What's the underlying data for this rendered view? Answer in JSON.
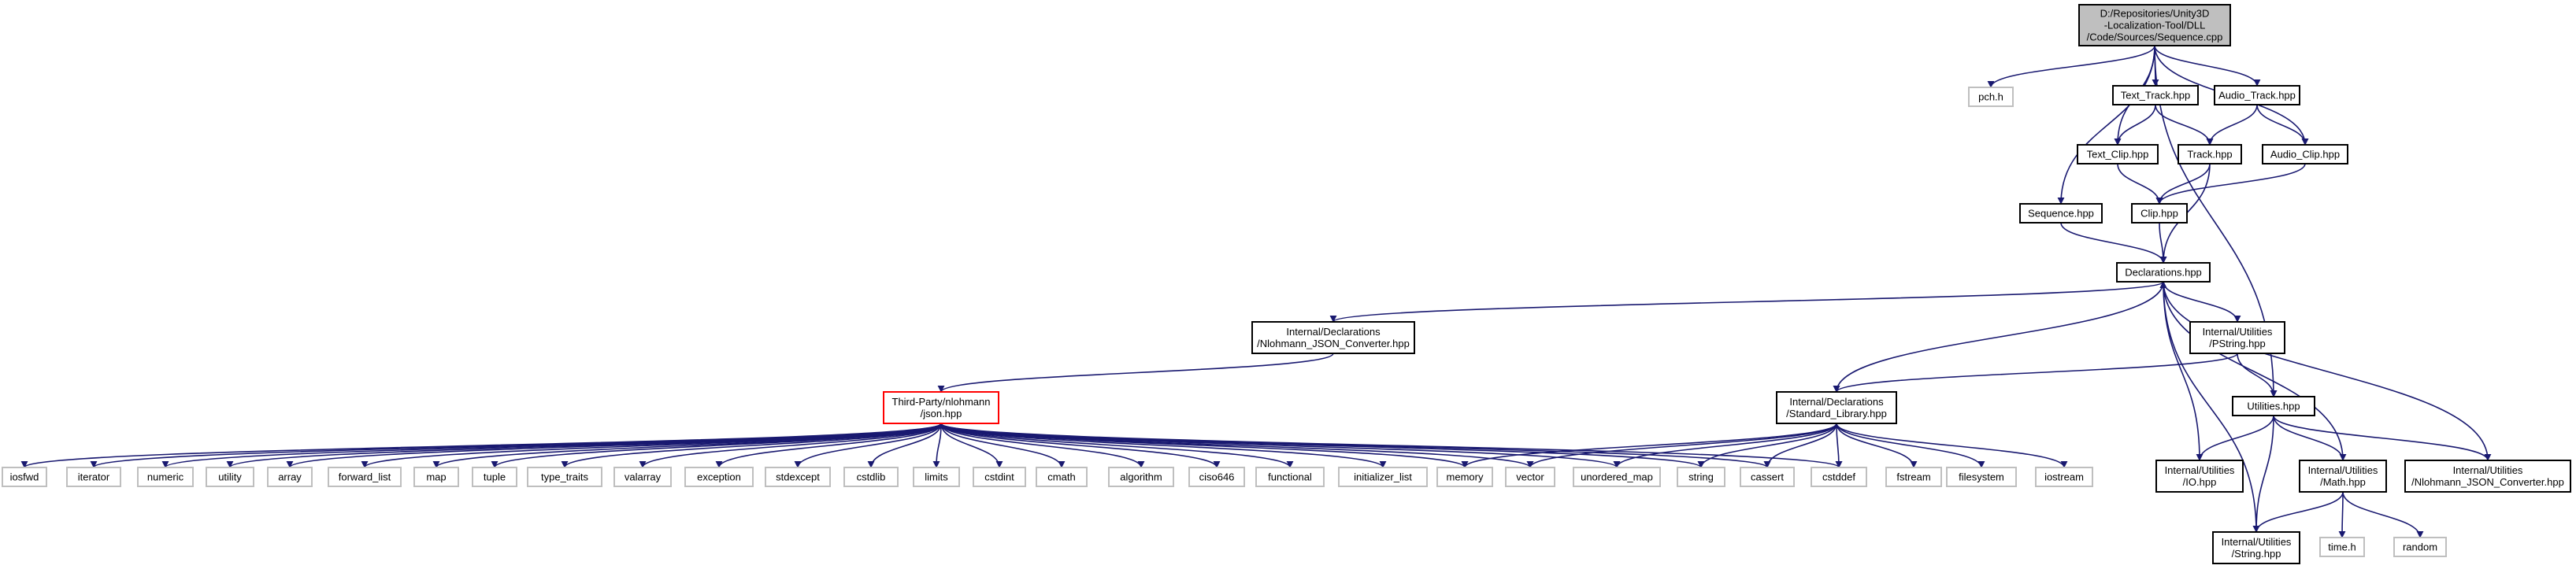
{
  "colors": {
    "root_fill": "#bfbfbf",
    "root_stroke": "#000000",
    "node_fill": "#ffffff",
    "node_stroke": "#000000",
    "system_stroke": "#bfbfbf",
    "truncated_stroke": "#ff0000",
    "edge": "#191970"
  },
  "nodes": [
    {
      "id": "root",
      "kind": "root",
      "lines": [
        "D:/Repositories/Unity3D",
        "-Localization-Tool/DLL",
        "/Code/Sources/Sequence.cpp"
      ]
    },
    {
      "id": "pch",
      "kind": "system",
      "lines": [
        "pch.h"
      ]
    },
    {
      "id": "text_track",
      "kind": "normal",
      "lines": [
        "Text_Track.hpp"
      ]
    },
    {
      "id": "audio_track",
      "kind": "normal",
      "lines": [
        "Audio_Track.hpp"
      ]
    },
    {
      "id": "text_clip",
      "kind": "normal",
      "lines": [
        "Text_Clip.hpp"
      ]
    },
    {
      "id": "track",
      "kind": "normal",
      "lines": [
        "Track.hpp"
      ]
    },
    {
      "id": "audio_clip",
      "kind": "normal",
      "lines": [
        "Audio_Clip.hpp"
      ]
    },
    {
      "id": "sequence",
      "kind": "normal",
      "lines": [
        "Sequence.hpp"
      ]
    },
    {
      "id": "clip",
      "kind": "normal",
      "lines": [
        "Clip.hpp"
      ]
    },
    {
      "id": "declarations",
      "kind": "normal",
      "lines": [
        "Declarations.hpp"
      ]
    },
    {
      "id": "nlohmann_conv_decl",
      "kind": "normal",
      "lines": [
        "Internal/Declarations",
        "/Nlohmann_JSON_Converter.hpp"
      ]
    },
    {
      "id": "pstring",
      "kind": "normal",
      "lines": [
        "Internal/Utilities",
        "/PString.hpp"
      ]
    },
    {
      "id": "json",
      "kind": "truncated",
      "lines": [
        "Third-Party/nlohmann",
        "/json.hpp"
      ]
    },
    {
      "id": "stdlib_hpp",
      "kind": "normal",
      "lines": [
        "Internal/Declarations",
        "/Standard_Library.hpp"
      ]
    },
    {
      "id": "utilities",
      "kind": "normal",
      "lines": [
        "Utilities.hpp"
      ]
    },
    {
      "id": "io",
      "kind": "normal",
      "lines": [
        "Internal/Utilities",
        "/IO.hpp"
      ]
    },
    {
      "id": "math",
      "kind": "normal",
      "lines": [
        "Internal/Utilities",
        "/Math.hpp"
      ]
    },
    {
      "id": "nlohmann_conv_util",
      "kind": "normal",
      "lines": [
        "Internal/Utilities",
        "/Nlohmann_JSON_Converter.hpp"
      ]
    },
    {
      "id": "string_hpp",
      "kind": "normal",
      "lines": [
        "Internal/Utilities",
        "/String.hpp"
      ]
    },
    {
      "id": "time_h",
      "kind": "system",
      "lines": [
        "time.h"
      ]
    },
    {
      "id": "random",
      "kind": "system",
      "lines": [
        "random"
      ]
    },
    {
      "id": "iosfwd",
      "kind": "system",
      "lines": [
        "iosfwd"
      ]
    },
    {
      "id": "iterator",
      "kind": "system",
      "lines": [
        "iterator"
      ]
    },
    {
      "id": "numeric",
      "kind": "system",
      "lines": [
        "numeric"
      ]
    },
    {
      "id": "utility",
      "kind": "system",
      "lines": [
        "utility"
      ]
    },
    {
      "id": "array",
      "kind": "system",
      "lines": [
        "array"
      ]
    },
    {
      "id": "forward_list",
      "kind": "system",
      "lines": [
        "forward_list"
      ]
    },
    {
      "id": "map",
      "kind": "system",
      "lines": [
        "map"
      ]
    },
    {
      "id": "tuple",
      "kind": "system",
      "lines": [
        "tuple"
      ]
    },
    {
      "id": "type_traits",
      "kind": "system",
      "lines": [
        "type_traits"
      ]
    },
    {
      "id": "valarray",
      "kind": "system",
      "lines": [
        "valarray"
      ]
    },
    {
      "id": "exception",
      "kind": "system",
      "lines": [
        "exception"
      ]
    },
    {
      "id": "stdexcept",
      "kind": "system",
      "lines": [
        "stdexcept"
      ]
    },
    {
      "id": "cstdlib",
      "kind": "system",
      "lines": [
        "cstdlib"
      ]
    },
    {
      "id": "limits",
      "kind": "system",
      "lines": [
        "limits"
      ]
    },
    {
      "id": "cstdint",
      "kind": "system",
      "lines": [
        "cstdint"
      ]
    },
    {
      "id": "cmath",
      "kind": "system",
      "lines": [
        "cmath"
      ]
    },
    {
      "id": "algorithm",
      "kind": "system",
      "lines": [
        "algorithm"
      ]
    },
    {
      "id": "ciso646",
      "kind": "system",
      "lines": [
        "ciso646"
      ]
    },
    {
      "id": "functional",
      "kind": "system",
      "lines": [
        "functional"
      ]
    },
    {
      "id": "initializer_list",
      "kind": "system",
      "lines": [
        "initializer_list"
      ]
    },
    {
      "id": "memory",
      "kind": "system",
      "lines": [
        "memory"
      ]
    },
    {
      "id": "vector",
      "kind": "system",
      "lines": [
        "vector"
      ]
    },
    {
      "id": "unordered_map",
      "kind": "system",
      "lines": [
        "unordered_map"
      ]
    },
    {
      "id": "string",
      "kind": "system",
      "lines": [
        "string"
      ]
    },
    {
      "id": "cassert",
      "kind": "system",
      "lines": [
        "cassert"
      ]
    },
    {
      "id": "cstddef",
      "kind": "system",
      "lines": [
        "cstddef"
      ]
    },
    {
      "id": "fstream",
      "kind": "system",
      "lines": [
        "fstream"
      ]
    },
    {
      "id": "filesystem",
      "kind": "system",
      "lines": [
        "filesystem"
      ]
    },
    {
      "id": "iostream",
      "kind": "system",
      "lines": [
        "iostream"
      ]
    }
  ],
  "edges": [
    [
      "root",
      "pch"
    ],
    [
      "root",
      "text_track"
    ],
    [
      "root",
      "audio_track"
    ],
    [
      "root",
      "text_clip"
    ],
    [
      "root",
      "audio_clip"
    ],
    [
      "root",
      "sequence"
    ],
    [
      "root",
      "utilities"
    ],
    [
      "text_track",
      "text_clip"
    ],
    [
      "text_track",
      "track"
    ],
    [
      "audio_track",
      "track"
    ],
    [
      "audio_track",
      "audio_clip"
    ],
    [
      "text_clip",
      "clip"
    ],
    [
      "track",
      "clip"
    ],
    [
      "track",
      "declarations"
    ],
    [
      "audio_clip",
      "clip"
    ],
    [
      "sequence",
      "declarations"
    ],
    [
      "clip",
      "declarations"
    ],
    [
      "declarations",
      "nlohmann_conv_decl"
    ],
    [
      "declarations",
      "pstring"
    ],
    [
      "declarations",
      "stdlib_hpp"
    ],
    [
      "nlohmann_conv_decl",
      "json"
    ],
    [
      "pstring",
      "stdlib_hpp"
    ],
    [
      "pstring",
      "utilities"
    ],
    [
      "utilities",
      "io"
    ],
    [
      "utilities",
      "math"
    ],
    [
      "utilities",
      "nlohmann_conv_util"
    ],
    [
      "utilities",
      "string_hpp"
    ],
    [
      "io",
      "declarations"
    ],
    [
      "math",
      "declarations"
    ],
    [
      "nlohmann_conv_util",
      "declarations"
    ],
    [
      "math",
      "string_hpp"
    ],
    [
      "math",
      "time_h"
    ],
    [
      "math",
      "random"
    ],
    [
      "string_hpp",
      "declarations"
    ],
    [
      "stdlib_hpp",
      "memory"
    ],
    [
      "stdlib_hpp",
      "vector"
    ],
    [
      "stdlib_hpp",
      "unordered_map"
    ],
    [
      "stdlib_hpp",
      "string"
    ],
    [
      "stdlib_hpp",
      "cassert"
    ],
    [
      "stdlib_hpp",
      "cstddef"
    ],
    [
      "stdlib_hpp",
      "fstream"
    ],
    [
      "stdlib_hpp",
      "filesystem"
    ],
    [
      "stdlib_hpp",
      "iostream"
    ],
    [
      "json",
      "iosfwd"
    ],
    [
      "json",
      "iterator"
    ],
    [
      "json",
      "numeric"
    ],
    [
      "json",
      "utility"
    ],
    [
      "json",
      "array"
    ],
    [
      "json",
      "forward_list"
    ],
    [
      "json",
      "map"
    ],
    [
      "json",
      "tuple"
    ],
    [
      "json",
      "type_traits"
    ],
    [
      "json",
      "valarray"
    ],
    [
      "json",
      "exception"
    ],
    [
      "json",
      "stdexcept"
    ],
    [
      "json",
      "cstdlib"
    ],
    [
      "json",
      "limits"
    ],
    [
      "json",
      "cstdint"
    ],
    [
      "json",
      "cmath"
    ],
    [
      "json",
      "algorithm"
    ],
    [
      "json",
      "ciso646"
    ],
    [
      "json",
      "functional"
    ],
    [
      "json",
      "initializer_list"
    ],
    [
      "json",
      "memory"
    ],
    [
      "json",
      "vector"
    ],
    [
      "json",
      "unordered_map"
    ],
    [
      "json",
      "string"
    ],
    [
      "json",
      "cassert"
    ],
    [
      "json",
      "cstddef"
    ]
  ]
}
